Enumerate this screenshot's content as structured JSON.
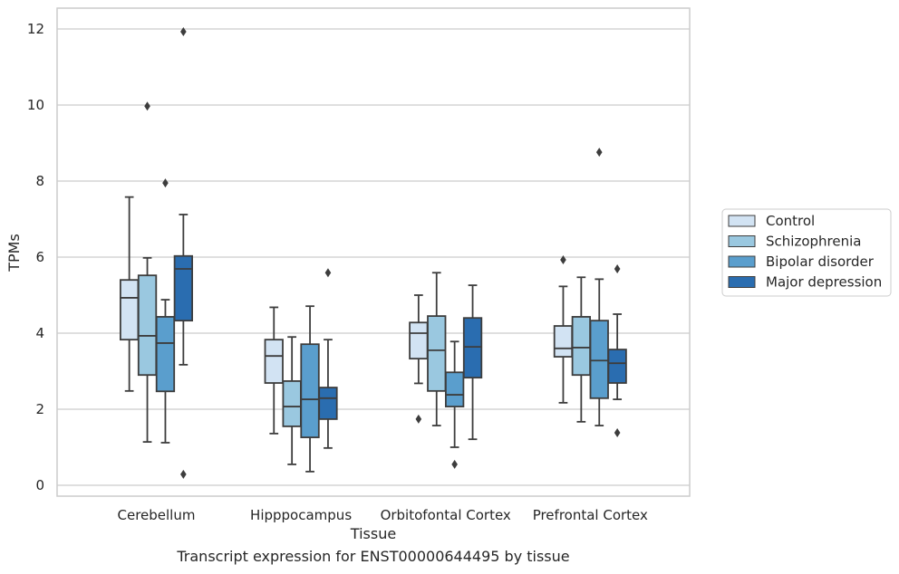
{
  "caption": "Transcript expression for ENST00000644495 by tissue",
  "chart_data": {
    "type": "box",
    "xlabel": "Tissue",
    "ylabel": "TPMs",
    "ylim": [
      -0.3,
      12.55
    ],
    "yticks": [
      0,
      2,
      4,
      6,
      8,
      10,
      12
    ],
    "grid": "horizontal",
    "legend_placement": "right",
    "categories": [
      "Cerebellum",
      "Hipppocampus",
      "Orbitofontal Cortex",
      "Prefrontal Cortex"
    ],
    "series": [
      {
        "name": "Control",
        "color": "#d2e3f3",
        "boxes": [
          {
            "whislo": 2.48,
            "q1": 3.83,
            "med": 4.93,
            "q3": 5.4,
            "whishi": 7.58,
            "fliers": []
          },
          {
            "whislo": 1.36,
            "q1": 2.69,
            "med": 3.4,
            "q3": 3.83,
            "whishi": 4.68,
            "fliers": []
          },
          {
            "whislo": 2.68,
            "q1": 3.33,
            "med": 4.0,
            "q3": 4.28,
            "whishi": 5.0,
            "fliers": [
              1.74
            ]
          },
          {
            "whislo": 2.17,
            "q1": 3.38,
            "med": 3.6,
            "q3": 4.19,
            "whishi": 5.23,
            "fliers": [
              5.93
            ]
          }
        ]
      },
      {
        "name": "Schizophrenia",
        "color": "#9ac8e0",
        "boxes": [
          {
            "whislo": 1.14,
            "q1": 2.9,
            "med": 3.93,
            "q3": 5.52,
            "whishi": 5.98,
            "fliers": [
              9.97
            ]
          },
          {
            "whislo": 0.55,
            "q1": 1.55,
            "med": 2.07,
            "q3": 2.74,
            "whishi": 3.9,
            "fliers": []
          },
          {
            "whislo": 1.57,
            "q1": 2.48,
            "med": 3.55,
            "q3": 4.45,
            "whishi": 5.59,
            "fliers": []
          },
          {
            "whislo": 1.67,
            "q1": 2.9,
            "med": 3.62,
            "q3": 4.43,
            "whishi": 5.47,
            "fliers": []
          }
        ]
      },
      {
        "name": "Bipolar disorder",
        "color": "#5a9ecd",
        "boxes": [
          {
            "whislo": 1.12,
            "q1": 2.47,
            "med": 3.74,
            "q3": 4.43,
            "whishi": 4.88,
            "fliers": [
              7.95
            ]
          },
          {
            "whislo": 0.36,
            "q1": 1.26,
            "med": 2.26,
            "q3": 3.71,
            "whishi": 4.71,
            "fliers": []
          },
          {
            "whislo": 1.0,
            "q1": 2.07,
            "med": 2.38,
            "q3": 2.97,
            "whishi": 3.78,
            "fliers": [
              0.55
            ]
          },
          {
            "whislo": 1.57,
            "q1": 2.29,
            "med": 3.28,
            "q3": 4.33,
            "whishi": 5.42,
            "fliers": [
              8.76
            ]
          }
        ]
      },
      {
        "name": "Major depression",
        "color": "#2a6db0",
        "boxes": [
          {
            "whislo": 3.17,
            "q1": 4.33,
            "med": 5.69,
            "q3": 6.03,
            "whishi": 7.12,
            "fliers": [
              11.93,
              0.29
            ]
          },
          {
            "whislo": 0.98,
            "q1": 1.74,
            "med": 2.29,
            "q3": 2.57,
            "whishi": 3.83,
            "fliers": [
              5.59
            ]
          },
          {
            "whislo": 1.21,
            "q1": 2.83,
            "med": 3.64,
            "q3": 4.4,
            "whishi": 5.26,
            "fliers": []
          },
          {
            "whislo": 2.26,
            "q1": 2.69,
            "med": 3.21,
            "q3": 3.57,
            "whishi": 4.5,
            "fliers": [
              1.38,
              5.69
            ]
          }
        ]
      }
    ]
  }
}
